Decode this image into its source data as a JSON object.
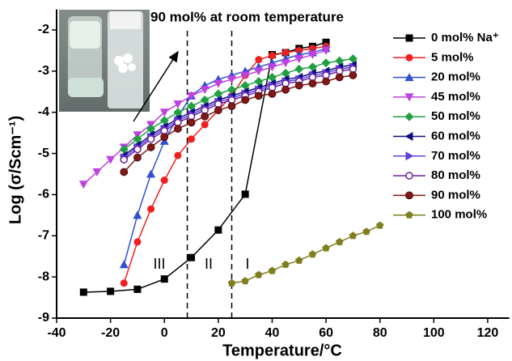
{
  "chart_data": {
    "type": "line",
    "xlabel": "Temperature/°C",
    "ylabel": "Log (σ/Scm⁻¹)",
    "annotations": [
      "90 mol% at room temperature",
      "III",
      "II",
      "I"
    ],
    "region_boundaries": [
      8.5,
      25
    ],
    "xlim": [
      -40,
      128
    ],
    "xticks": [
      -40,
      -20,
      0,
      20,
      40,
      60,
      80,
      100,
      120
    ],
    "ylim": [
      -9,
      -1.5
    ],
    "yticks": [
      -9,
      -8,
      -7,
      -6,
      -5,
      -4,
      -3,
      -2
    ],
    "series": [
      {
        "name": "0 mol% Na⁺",
        "color": "#000000",
        "marker": "square",
        "x": [
          -30,
          -20,
          -10,
          0,
          10,
          20,
          30,
          40,
          45,
          50,
          55,
          60
        ],
        "values": [
          -8.37,
          -8.35,
          -8.3,
          -8.05,
          -7.53,
          -6.86,
          -5.99,
          -2.6,
          -2.55,
          -2.45,
          -2.4,
          -2.3
        ]
      },
      {
        "name": "5 mol%",
        "color": "#f02020",
        "marker": "circle",
        "x": [
          -15,
          -10,
          -5,
          0,
          5,
          10,
          15,
          20,
          25,
          30,
          35,
          40,
          45,
          50,
          55,
          60
        ],
        "values": [
          -8.15,
          -7.15,
          -6.35,
          -5.65,
          -5.05,
          -4.65,
          -4.3,
          -3.95,
          -3.6,
          -3.1,
          -2.72,
          -2.62,
          -2.55,
          -2.5,
          -2.45,
          -2.4
        ]
      },
      {
        "name": "20 mol%",
        "color": "#3050d0",
        "marker": "triangle-up",
        "x": [
          -15,
          -10,
          -5,
          0,
          5,
          10,
          15,
          20,
          25,
          30,
          35,
          40,
          45,
          50,
          55,
          60
        ],
        "values": [
          -7.7,
          -6.5,
          -5.5,
          -4.7,
          -4.1,
          -3.6,
          -3.35,
          -3.2,
          -3.1,
          -3.0,
          -2.9,
          -2.8,
          -2.7,
          -2.6,
          -2.55,
          -2.45
        ]
      },
      {
        "name": "45 mol%",
        "color": "#c040e0",
        "marker": "triangle-down",
        "x": [
          -30,
          -25,
          -20,
          -15,
          -10,
          -5,
          0,
          5,
          10,
          15,
          20,
          25,
          30,
          35,
          40,
          45,
          50,
          55,
          60
        ],
        "values": [
          -5.75,
          -5.45,
          -5.15,
          -4.85,
          -4.55,
          -4.3,
          -4.0,
          -3.8,
          -3.6,
          -3.45,
          -3.3,
          -3.2,
          -3.1,
          -3.0,
          -2.9,
          -2.8,
          -2.7,
          -2.6,
          -2.5
        ]
      },
      {
        "name": "50 mol%",
        "color": "#20a040",
        "marker": "diamond",
        "x": [
          -15,
          -10,
          -5,
          0,
          5,
          10,
          15,
          20,
          25,
          30,
          35,
          40,
          45,
          50,
          55,
          60,
          65,
          70
        ],
        "values": [
          -4.9,
          -4.65,
          -4.4,
          -4.2,
          -4.0,
          -3.85,
          -3.7,
          -3.55,
          -3.45,
          -3.35,
          -3.25,
          -3.15,
          -3.05,
          -2.95,
          -2.9,
          -2.8,
          -2.75,
          -2.7
        ]
      },
      {
        "name": "60 mol%",
        "color": "#101080",
        "marker": "triangle-left",
        "x": [
          -15,
          -10,
          -5,
          0,
          5,
          10,
          15,
          20,
          25,
          30,
          35,
          40,
          45,
          50,
          55,
          60,
          65,
          70
        ],
        "values": [
          -5.05,
          -4.8,
          -4.55,
          -4.35,
          -4.15,
          -4.0,
          -3.85,
          -3.7,
          -3.6,
          -3.5,
          -3.4,
          -3.3,
          -3.2,
          -3.15,
          -3.05,
          -3.0,
          -2.9,
          -2.85
        ]
      },
      {
        "name": "70 mol%",
        "color": "#6040e0",
        "marker": "triangle-right",
        "x": [
          -15,
          -10,
          -5,
          0,
          5,
          10,
          15,
          20,
          25,
          30,
          35,
          40,
          45,
          50,
          55,
          60,
          65,
          70
        ],
        "values": [
          -5.1,
          -4.85,
          -4.6,
          -4.4,
          -4.2,
          -4.05,
          -3.9,
          -3.75,
          -3.65,
          -3.55,
          -3.45,
          -3.35,
          -3.25,
          -3.2,
          -3.1,
          -3.05,
          -2.95,
          -2.9
        ]
      },
      {
        "name": "80 mol%",
        "color": "#6a1fa0",
        "marker": "circle-open",
        "x": [
          -15,
          -10,
          -5,
          0,
          5,
          10,
          15,
          20,
          25,
          30,
          35,
          40,
          45,
          50,
          55,
          60,
          65,
          70
        ],
        "values": [
          -5.15,
          -4.9,
          -4.65,
          -4.45,
          -4.25,
          -4.1,
          -3.95,
          -3.8,
          -3.7,
          -3.6,
          -3.5,
          -3.4,
          -3.3,
          -3.25,
          -3.15,
          -3.1,
          -3.0,
          -2.95
        ]
      },
      {
        "name": "90 mol%",
        "color": "#801818",
        "marker": "sphere",
        "x": [
          -15,
          -10,
          -5,
          0,
          5,
          10,
          15,
          20,
          25,
          30,
          35,
          40,
          45,
          50,
          55,
          60,
          65,
          70
        ],
        "values": [
          -5.45,
          -5.1,
          -4.85,
          -4.6,
          -4.4,
          -4.25,
          -4.1,
          -3.95,
          -3.85,
          -3.7,
          -3.6,
          -3.55,
          -3.45,
          -3.35,
          -3.3,
          -3.25,
          -3.15,
          -3.1
        ]
      },
      {
        "name": "100 mol%",
        "color": "#7f7f1f",
        "marker": "pentagon",
        "x": [
          25,
          30,
          35,
          40,
          45,
          50,
          55,
          60,
          65,
          70,
          75,
          80
        ],
        "values": [
          -8.15,
          -8.1,
          -7.95,
          -7.85,
          -7.7,
          -7.6,
          -7.45,
          -7.3,
          -7.15,
          -7.0,
          -6.9,
          -6.75
        ]
      }
    ]
  }
}
